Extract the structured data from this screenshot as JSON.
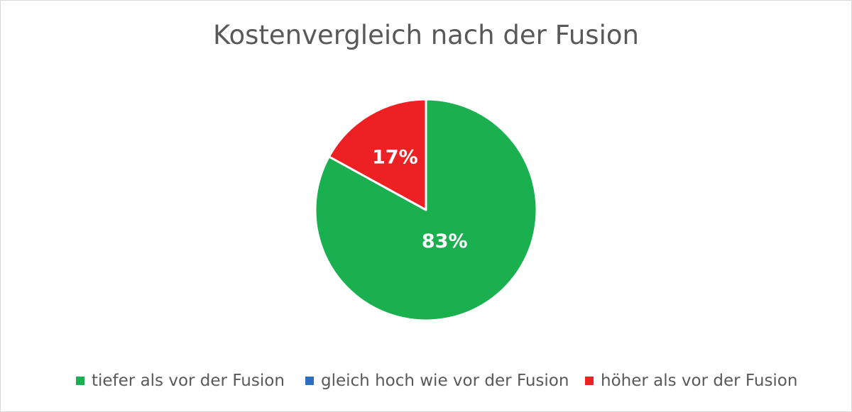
{
  "chart_data": {
    "type": "pie",
    "title": "Kostenvergleich nach der Fusion",
    "slices": [
      {
        "name": "tiefer als vor der Fusion",
        "value": 83,
        "label": "83%",
        "color": "#1aaf4f"
      },
      {
        "name": "gleich hoch wie vor der Fusion",
        "value": 0,
        "label": "",
        "color": "#2b6fbf"
      },
      {
        "name": "höher als vor der Fusion",
        "value": 17,
        "label": "17%",
        "color": "#ed2024"
      }
    ],
    "legend_position": "bottom"
  }
}
